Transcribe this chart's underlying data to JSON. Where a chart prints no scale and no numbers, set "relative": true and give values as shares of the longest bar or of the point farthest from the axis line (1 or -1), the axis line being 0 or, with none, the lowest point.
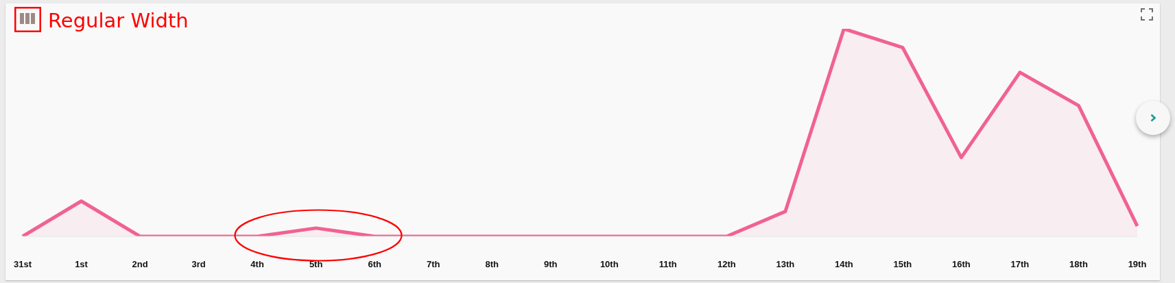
{
  "chart_data": {
    "type": "area",
    "relative": true,
    "categories": [
      "31st",
      "1st",
      "2nd",
      "3rd",
      "4th",
      "5th",
      "6th",
      "7th",
      "8th",
      "9th",
      "10th",
      "11th",
      "12th",
      "13th",
      "14th",
      "15th",
      "16th",
      "17th",
      "18th",
      "19th"
    ],
    "values": [
      0,
      0.17,
      0,
      0,
      0,
      0.04,
      0,
      0,
      0,
      0,
      0,
      0,
      0,
      0.12,
      1,
      0.91,
      0.38,
      0.79,
      0.63,
      0.05
    ],
    "color": "#f06292",
    "annotations": [
      "Regular Width"
    ]
  }
}
